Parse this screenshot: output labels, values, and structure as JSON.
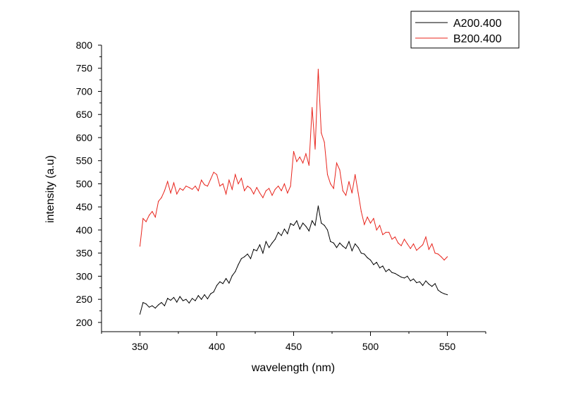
{
  "chart_data": {
    "type": "line",
    "xlabel": "wavelength (nm)",
    "ylabel": "intensity (a.u)",
    "xlim": [
      325,
      575
    ],
    "ylim": [
      180,
      800
    ],
    "x_ticks": [
      350,
      400,
      450,
      500,
      550
    ],
    "y_ticks": [
      200,
      250,
      300,
      350,
      400,
      450,
      500,
      550,
      600,
      650,
      700,
      750,
      800
    ],
    "grid": false,
    "legend": "top-right",
    "series": [
      {
        "name": "A200.400",
        "color": "#000000",
        "x": [
          350,
          352,
          354,
          356,
          358,
          360,
          362,
          364,
          366,
          368,
          370,
          372,
          374,
          376,
          378,
          380,
          382,
          384,
          386,
          388,
          390,
          392,
          394,
          396,
          398,
          400,
          402,
          404,
          406,
          408,
          410,
          412,
          414,
          416,
          418,
          420,
          422,
          424,
          426,
          428,
          430,
          432,
          434,
          436,
          438,
          440,
          442,
          444,
          446,
          448,
          450,
          452,
          454,
          456,
          458,
          460,
          462,
          464,
          466,
          468,
          470,
          472,
          474,
          476,
          478,
          480,
          482,
          484,
          486,
          488,
          490,
          492,
          494,
          496,
          498,
          500,
          502,
          504,
          506,
          508,
          510,
          512,
          514,
          516,
          518,
          520,
          522,
          524,
          526,
          528,
          530,
          532,
          534,
          536,
          538,
          540,
          542,
          544,
          546,
          548,
          550
        ],
        "values": [
          218,
          243,
          240,
          233,
          236,
          231,
          238,
          243,
          236,
          252,
          248,
          254,
          244,
          256,
          247,
          250,
          242,
          252,
          247,
          258,
          250,
          260,
          251,
          262,
          266,
          280,
          288,
          284,
          295,
          285,
          301,
          310,
          325,
          338,
          342,
          348,
          338,
          358,
          355,
          368,
          350,
          375,
          362,
          372,
          380,
          395,
          388,
          402,
          392,
          414,
          410,
          420,
          402,
          415,
          408,
          398,
          420,
          410,
          452,
          415,
          410,
          400,
          375,
          372,
          362,
          372,
          365,
          360,
          375,
          355,
          370,
          362,
          350,
          348,
          340,
          335,
          325,
          330,
          318,
          322,
          310,
          315,
          308,
          306,
          302,
          298,
          296,
          300,
          290,
          294,
          286,
          288,
          280,
          290,
          283,
          278,
          284,
          270,
          265,
          262,
          260
        ]
      },
      {
        "name": "B200.400",
        "color": "#e8241c",
        "x": [
          350,
          352,
          354,
          356,
          358,
          360,
          362,
          364,
          366,
          368,
          370,
          372,
          374,
          376,
          378,
          380,
          382,
          384,
          386,
          388,
          390,
          392,
          394,
          396,
          398,
          400,
          402,
          404,
          406,
          408,
          410,
          412,
          414,
          416,
          418,
          420,
          422,
          424,
          426,
          428,
          430,
          432,
          434,
          436,
          438,
          440,
          442,
          444,
          446,
          448,
          450,
          452,
          454,
          456,
          458,
          460,
          462,
          464,
          466,
          468,
          470,
          472,
          474,
          476,
          478,
          480,
          482,
          484,
          486,
          488,
          490,
          492,
          494,
          496,
          498,
          500,
          502,
          504,
          506,
          508,
          510,
          512,
          514,
          516,
          518,
          520,
          522,
          524,
          526,
          528,
          530,
          532,
          534,
          536,
          538,
          540,
          542,
          544,
          546,
          548,
          550
        ],
        "values": [
          365,
          425,
          418,
          432,
          440,
          428,
          462,
          470,
          485,
          505,
          480,
          502,
          478,
          490,
          486,
          495,
          492,
          488,
          495,
          485,
          508,
          498,
          495,
          510,
          525,
          520,
          495,
          500,
          478,
          508,
          488,
          520,
          500,
          512,
          485,
          495,
          490,
          478,
          492,
          480,
          470,
          485,
          490,
          475,
          488,
          495,
          485,
          500,
          480,
          495,
          570,
          548,
          558,
          545,
          565,
          540,
          665,
          575,
          748,
          610,
          590,
          520,
          500,
          490,
          545,
          530,
          485,
          475,
          505,
          480,
          520,
          480,
          440,
          412,
          428,
          415,
          425,
          400,
          410,
          390,
          395,
          395,
          380,
          385,
          372,
          366,
          380,
          370,
          360,
          370,
          356,
          362,
          368,
          385,
          358,
          370,
          350,
          348,
          342,
          335,
          342
        ]
      }
    ]
  }
}
